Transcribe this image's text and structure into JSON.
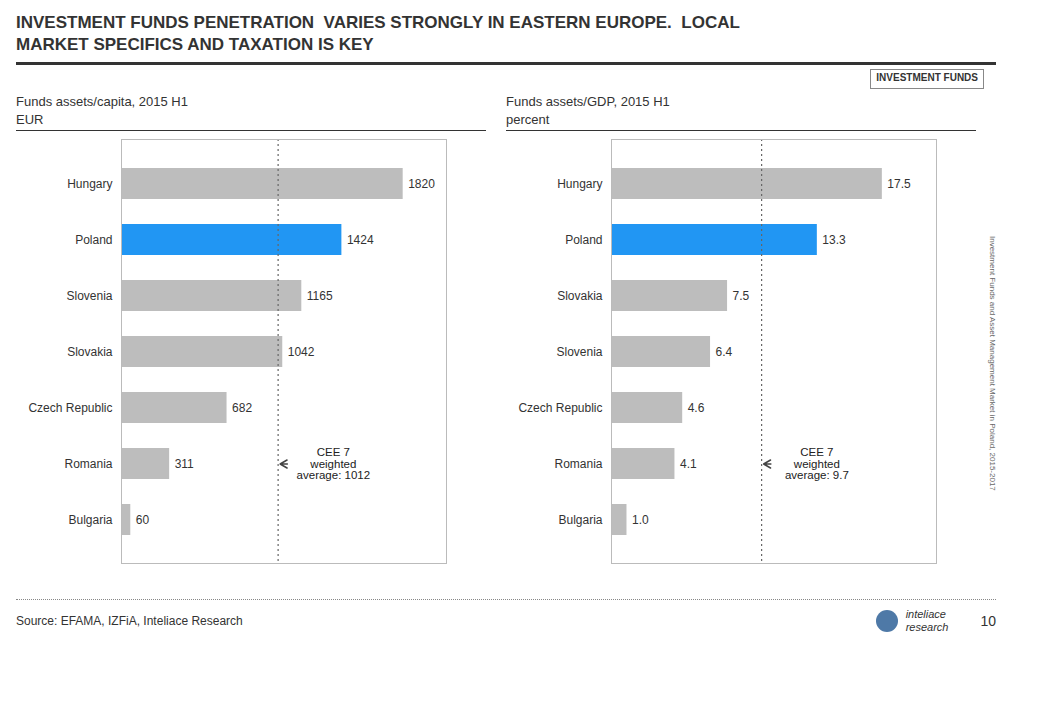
{
  "title": "INVESTMENT FUNDS PENETRATION  VARIES STRONGLY IN EASTERN EUROPE.  LOCAL\nMARKET SPECIFICS AND TAXATION IS KEY",
  "tag": "INVESTMENT FUNDS",
  "source": "Source: EFAMA, IZFiA, Inteliace Research",
  "side_text": "Investment Funds and Asset Management Market in Poland, 2015-2017",
  "logo": [
    "inteliace",
    "research"
  ],
  "page_number": "10",
  "chart_data": [
    {
      "type": "bar",
      "orientation": "horizontal",
      "title": "Funds assets/capita, 2015 H1",
      "subtitle": "EUR",
      "categories": [
        "Hungary",
        "Poland",
        "Slovenia",
        "Slovakia",
        "Czech Republic",
        "Romania",
        "Bulgaria"
      ],
      "values": [
        1820,
        1424,
        1165,
        1042,
        682,
        311,
        60
      ],
      "colors": [
        "#BDBDBD",
        "#2196F3",
        "#BDBDBD",
        "#BDBDBD",
        "#BDBDBD",
        "#BDBDBD",
        "#BDBDBD"
      ],
      "data_labels": true,
      "tick_labels": "y",
      "xlim": [
        0,
        2100
      ],
      "avg_line": {
        "value": 1012,
        "label": "CEE 7\nweighted\naverage: 1012"
      }
    },
    {
      "type": "bar",
      "orientation": "horizontal",
      "title": "Funds assets/GDP, 2015 H1",
      "subtitle": "percent",
      "categories": [
        "Hungary",
        "Poland",
        "Slovakia",
        "Slovenia",
        "Czech Republic",
        "Romania",
        "Bulgaria"
      ],
      "values": [
        17.5,
        13.3,
        7.5,
        6.4,
        4.6,
        4.1,
        1.0
      ],
      "value_labels": [
        "17.5",
        "13.3",
        "7.5",
        "6.4",
        "4.6",
        "4.1",
        "1.0"
      ],
      "colors": [
        "#BDBDBD",
        "#2196F3",
        "#BDBDBD",
        "#BDBDBD",
        "#BDBDBD",
        "#BDBDBD",
        "#BDBDBD"
      ],
      "data_labels": true,
      "tick_labels": "y",
      "xlim": [
        0,
        21
      ],
      "avg_line": {
        "value": 9.7,
        "label": "CEE 7\nweighted\naverage: 9.7"
      }
    }
  ]
}
